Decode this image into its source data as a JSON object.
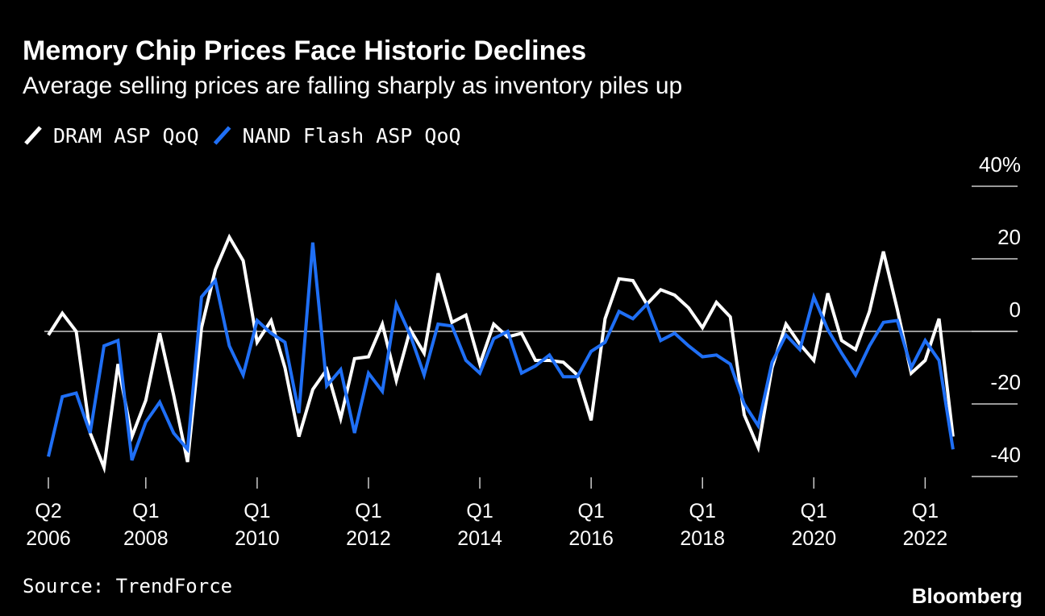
{
  "chart_data": {
    "type": "line",
    "title": "Memory Chip Prices Face Historic Declines",
    "subtitle": "Average selling prices are falling sharply as inventory piles up",
    "source": "Source: TrendForce",
    "brand": "Bloomberg",
    "legend_position": "top-left",
    "categories": [
      "Q2 2006",
      null,
      null,
      null,
      null,
      null,
      null,
      "Q1 2008",
      null,
      null,
      null,
      null,
      null,
      null,
      null,
      "Q1 2010",
      null,
      null,
      null,
      null,
      null,
      null,
      null,
      "Q1 2012",
      null,
      null,
      null,
      null,
      null,
      null,
      null,
      "Q1 2014",
      null,
      null,
      null,
      null,
      null,
      null,
      null,
      "Q1 2016",
      null,
      null,
      null,
      null,
      null,
      null,
      null,
      "Q1 2018",
      null,
      null,
      null,
      null,
      null,
      null,
      null,
      "Q1 2020",
      null,
      null,
      null,
      null,
      null,
      null,
      null,
      "Q1 2022",
      null,
      null
    ],
    "series": [
      {
        "name": "DRAM ASP QoQ",
        "color": "#ffffff",
        "values": [
          -1,
          5,
          0,
          -28,
          -37.5,
          -9,
          -29,
          -19,
          -0.5,
          -17.5,
          -36,
          1,
          17,
          26,
          19.5,
          -3,
          3,
          -10,
          -29,
          -16,
          -10.5,
          -24,
          -7.5,
          -7,
          2,
          -13.5,
          0.5,
          -6,
          16,
          2.5,
          4.5,
          -9,
          2,
          -1.5,
          -0.5,
          -8,
          -8,
          -8.5,
          -12,
          -24.5,
          3.5,
          14.5,
          14,
          7.5,
          11.5,
          10,
          6.5,
          1,
          8,
          4,
          -23,
          -32,
          -10,
          2,
          -3.5,
          -8,
          10.5,
          -2.5,
          -5,
          5.5,
          22,
          6,
          -11.5,
          -8,
          3.5,
          -29
        ]
      },
      {
        "name": "NAND Flash ASP QoQ",
        "color": "#1f6ff5",
        "values": [
          -34.5,
          -18,
          -17,
          -28,
          -4,
          -2.5,
          -35.5,
          -25,
          -19.5,
          -28,
          -32.5,
          9.5,
          14,
          -4,
          -12,
          3,
          -0.5,
          -3,
          -22.5,
          24.5,
          -15,
          -10.5,
          -28,
          -11.5,
          -16.5,
          7.5,
          -1,
          -12,
          2,
          1.5,
          -8,
          -11.5,
          -2,
          0,
          -11.5,
          -9.5,
          -6.5,
          -12.5,
          -12.5,
          -5.5,
          -3,
          5.5,
          3.5,
          7.5,
          -2.5,
          -0.5,
          -4,
          -7,
          -6.5,
          -9,
          -20,
          -26,
          -8.5,
          -1,
          -5,
          9.5,
          0.5,
          -6,
          -12,
          -4,
          2.5,
          3,
          -10,
          -2.5,
          -8,
          -32.5
        ]
      }
    ],
    "ylim": [
      -42,
      44
    ],
    "yticks": [
      {
        "value": 40,
        "label": "40%"
      },
      20,
      0,
      -20,
      -40
    ]
  }
}
